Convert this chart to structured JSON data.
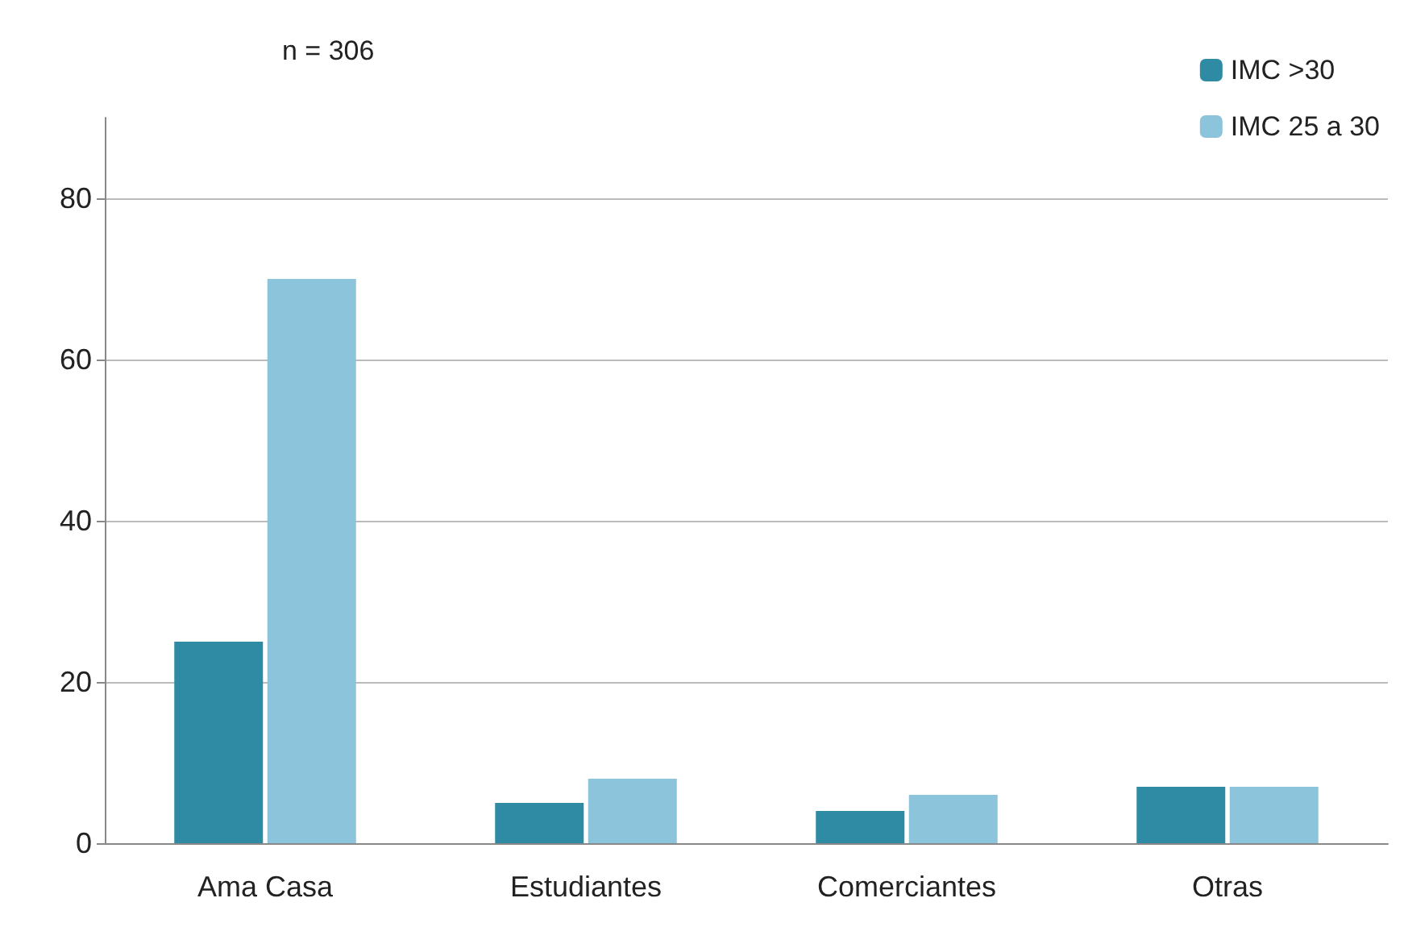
{
  "chart_data": {
    "type": "bar",
    "title": "n = 306",
    "categories": [
      "Ama Casa",
      "Estudiantes",
      "Comerciantes",
      "Otras"
    ],
    "series": [
      {
        "name": "IMC >30",
        "color": "#2e8ba3",
        "values": [
          25,
          5,
          4,
          7
        ]
      },
      {
        "name": "IMC 25 a 30",
        "color": "#8cc4dc",
        "values": [
          70,
          8,
          6,
          7
        ]
      }
    ],
    "ylim": [
      0,
      90
    ],
    "yticks": [
      0,
      20,
      40,
      60,
      80
    ],
    "grid": true,
    "legend": "top right"
  }
}
